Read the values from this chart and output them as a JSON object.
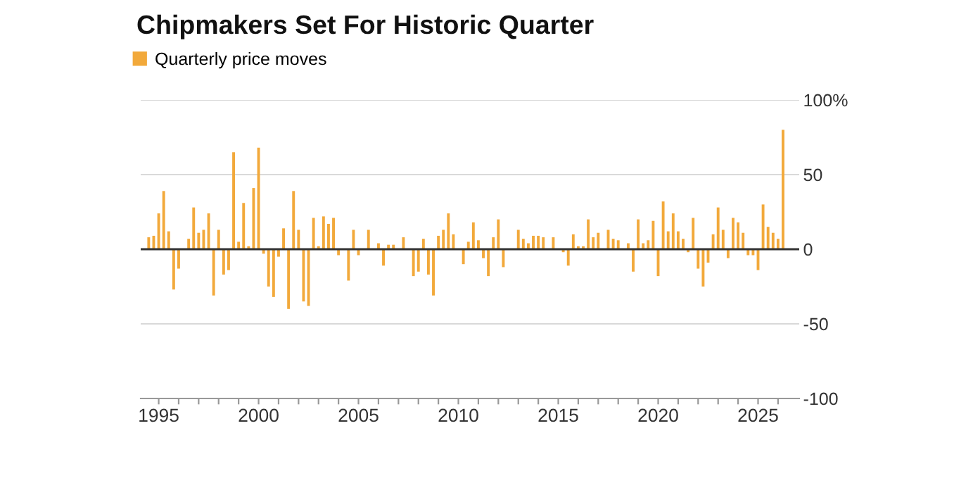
{
  "chart_data": {
    "type": "bar",
    "title": "Chipmakers Set For Historic Quarter",
    "x": [
      1994.5,
      1994.75,
      1995,
      1995.25,
      1995.5,
      1995.75,
      1996,
      1996.25,
      1996.5,
      1996.75,
      1997,
      1997.25,
      1997.5,
      1997.75,
      1998,
      1998.25,
      1998.5,
      1998.75,
      1999,
      1999.25,
      1999.5,
      1999.75,
      2000,
      2000.25,
      2000.5,
      2000.75,
      2001,
      2001.25,
      2001.5,
      2001.75,
      2002,
      2002.25,
      2002.5,
      2002.75,
      2003,
      2003.25,
      2003.5,
      2003.75,
      2004,
      2004.25,
      2004.5,
      2004.75,
      2005,
      2005.25,
      2005.5,
      2005.75,
      2006,
      2006.25,
      2006.5,
      2006.75,
      2007,
      2007.25,
      2007.5,
      2007.75,
      2008,
      2008.25,
      2008.5,
      2008.75,
      2009,
      2009.25,
      2009.5,
      2009.75,
      2010,
      2010.25,
      2010.5,
      2010.75,
      2011,
      2011.25,
      2011.5,
      2011.75,
      2012,
      2012.25,
      2012.5,
      2012.75,
      2013,
      2013.25,
      2013.5,
      2013.75,
      2014,
      2014.25,
      2014.5,
      2014.75,
      2015,
      2015.25,
      2015.5,
      2015.75,
      2016,
      2016.25,
      2016.5,
      2016.75,
      2017,
      2017.25,
      2017.5,
      2017.75,
      2018,
      2018.25,
      2018.5,
      2018.75,
      2019,
      2019.25,
      2019.5,
      2019.75,
      2020,
      2020.25,
      2020.5,
      2020.75,
      2021,
      2021.25,
      2021.5,
      2021.75,
      2022,
      2022.25,
      2022.5,
      2022.75,
      2023,
      2023.25,
      2023.5,
      2023.75,
      2024,
      2024.25,
      2024.5,
      2024.75,
      2025,
      2025.25,
      2025.5,
      2025.75,
      2026,
      2026.25
    ],
    "series": [
      {
        "name": "Quarterly price moves",
        "color": "#f2a93b",
        "values": [
          8,
          9,
          24,
          39,
          12,
          -27,
          -13,
          null,
          7,
          28,
          11,
          13,
          24,
          -31,
          13,
          -17,
          -14,
          65,
          5,
          31,
          2,
          41,
          68,
          -3,
          -25,
          -32,
          -5,
          14,
          -40,
          39,
          13,
          -35,
          -38,
          21,
          2,
          22,
          17,
          21,
          -4,
          null,
          -21,
          13,
          -4,
          null,
          13,
          null,
          4,
          -11,
          3,
          3,
          null,
          8,
          null,
          -18,
          -15,
          7,
          -17,
          -31,
          9,
          13,
          24,
          10,
          null,
          -10,
          5,
          18,
          6,
          -6,
          -18,
          8,
          20,
          -12,
          null,
          null,
          13,
          7,
          4,
          9,
          9,
          8,
          null,
          8,
          null,
          -2,
          -11,
          10,
          2,
          2,
          20,
          8,
          11,
          null,
          13,
          7,
          6,
          null,
          4,
          -15,
          20,
          4,
          6,
          19,
          -18,
          32,
          12,
          24,
          12,
          7,
          -2,
          21,
          -13,
          -25,
          -9,
          10,
          28,
          13,
          -6,
          21,
          18,
          11,
          -4,
          -4,
          -14,
          30,
          15,
          11,
          7,
          80
        ]
      }
    ],
    "xlim": [
      1994.1,
      2027.06
    ],
    "xticks": [
      1995,
      {
        "value": 1996,
        "label": null
      },
      {
        "value": 1997,
        "label": null
      },
      {
        "value": 1998,
        "label": null
      },
      {
        "value": 1999,
        "label": null
      },
      2000,
      {
        "value": 2001,
        "label": null
      },
      {
        "value": 2002,
        "label": null
      },
      {
        "value": 2003,
        "label": null
      },
      {
        "value": 2004,
        "label": null
      },
      2005,
      {
        "value": 2006,
        "label": null
      },
      {
        "value": 2007,
        "label": null
      },
      {
        "value": 2008,
        "label": null
      },
      {
        "value": 2009,
        "label": null
      },
      2010,
      {
        "value": 2011,
        "label": null
      },
      {
        "value": 2012,
        "label": null
      },
      {
        "value": 2013,
        "label": null
      },
      {
        "value": 2014,
        "label": null
      },
      2015,
      {
        "value": 2016,
        "label": null
      },
      {
        "value": 2017,
        "label": null
      },
      {
        "value": 2018,
        "label": null
      },
      {
        "value": 2019,
        "label": null
      },
      2020,
      {
        "value": 2021,
        "label": null
      },
      {
        "value": 2022,
        "label": null
      },
      {
        "value": 2023,
        "label": null
      },
      {
        "value": 2024,
        "label": null
      },
      2025,
      {
        "value": 2026,
        "label": null
      }
    ],
    "ylim": [
      -100,
      100
    ],
    "yticks": [
      -100,
      -50,
      0,
      50,
      {
        "value": 100,
        "label": "100%"
      }
    ],
    "ref_lines": [
      {
        "axis": "y",
        "value": 0,
        "color": "#333333"
      }
    ],
    "grid": "y",
    "legend": "top left"
  }
}
